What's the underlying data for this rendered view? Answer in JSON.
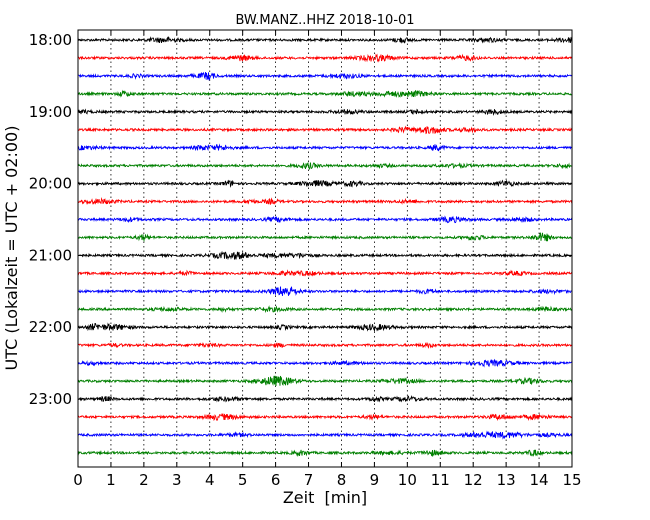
{
  "chart_data": {
    "type": "line",
    "title": "BW.MANZ..HHZ 2018-10-01",
    "xlabel": "Zeit  [min]",
    "ylabel": "UTC (Lokalzeit = UTC + 02:00)",
    "xlim": [
      0,
      15
    ],
    "x_ticks": [
      0,
      1,
      2,
      3,
      4,
      5,
      6,
      7,
      8,
      9,
      10,
      11,
      12,
      13,
      14,
      15
    ],
    "y_ticks": [
      "18:00",
      "19:00",
      "20:00",
      "21:00",
      "22:00",
      "23:00"
    ],
    "grid": "vertical dotted",
    "trace_interval_min": 15,
    "trace_count": 24,
    "series": [
      {
        "start": "18:00",
        "color": "#000000"
      },
      {
        "start": "18:15",
        "color": "#ff0000"
      },
      {
        "start": "18:30",
        "color": "#0000ff"
      },
      {
        "start": "18:45",
        "color": "#008000"
      },
      {
        "start": "19:00",
        "color": "#000000"
      },
      {
        "start": "19:15",
        "color": "#ff0000"
      },
      {
        "start": "19:30",
        "color": "#0000ff"
      },
      {
        "start": "19:45",
        "color": "#008000"
      },
      {
        "start": "20:00",
        "color": "#000000"
      },
      {
        "start": "20:15",
        "color": "#ff0000"
      },
      {
        "start": "20:30",
        "color": "#0000ff"
      },
      {
        "start": "20:45",
        "color": "#008000"
      },
      {
        "start": "21:00",
        "color": "#000000"
      },
      {
        "start": "21:15",
        "color": "#ff0000"
      },
      {
        "start": "21:30",
        "color": "#0000ff"
      },
      {
        "start": "21:45",
        "color": "#008000"
      },
      {
        "start": "22:00",
        "color": "#000000"
      },
      {
        "start": "22:15",
        "color": "#ff0000"
      },
      {
        "start": "22:30",
        "color": "#0000ff"
      },
      {
        "start": "22:45",
        "color": "#008000"
      },
      {
        "start": "23:00",
        "color": "#000000"
      },
      {
        "start": "23:15",
        "color": "#ff0000"
      },
      {
        "start": "23:30",
        "color": "#0000ff"
      },
      {
        "start": "23:45",
        "color": "#008000"
      }
    ]
  }
}
